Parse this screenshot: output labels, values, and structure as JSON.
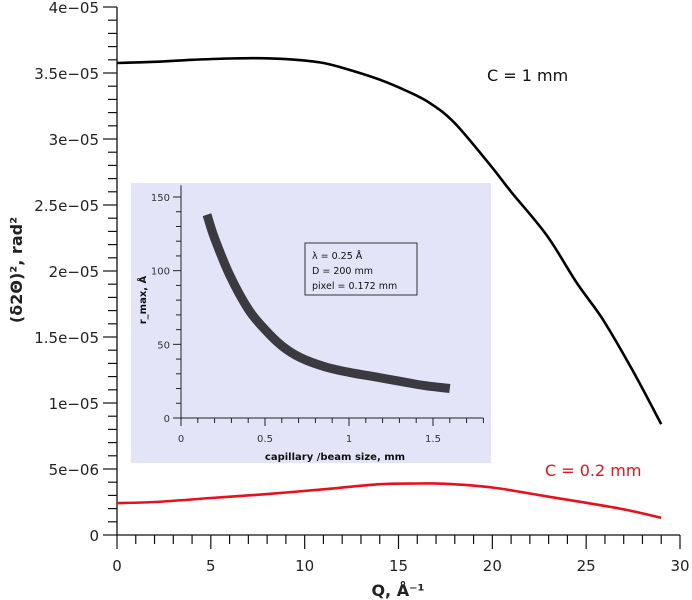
{
  "chart_data": [
    {
      "type": "line",
      "title": "",
      "xlabel": "Q, Å⁻¹",
      "ylabel": "(δ2Θ)², rad²",
      "xlim": [
        0,
        30
      ],
      "ylim": [
        0,
        4e-05
      ],
      "x_ticks": [
        0,
        5,
        10,
        15,
        20,
        25,
        30
      ],
      "x_tick_labels": [
        "0",
        "5",
        "10",
        "15",
        "20",
        "25",
        "30"
      ],
      "x_minor_step": 1,
      "y_ticks": [
        0,
        5e-06,
        1e-05,
        1.5e-05,
        2e-05,
        2.5e-05,
        3e-05,
        3.5e-05,
        4e-05
      ],
      "y_tick_labels": [
        "0",
        "5e−06",
        "1e−05",
        "1.5e−05",
        "2e−05",
        "2.5e−05",
        "3e−05",
        "3.5e−05",
        "4e−05"
      ],
      "y_minor_step": 1e-06,
      "grid": false,
      "legend": "none (inline annotations)",
      "series": [
        {
          "name": "C = 1 mm",
          "color": "#000000",
          "x": [
            0,
            2,
            4,
            6,
            7.5,
            9,
            10.8,
            12,
            14,
            15.5,
            16.7,
            18,
            19.9,
            21,
            22.9,
            24.5,
            25.9,
            27.5,
            29
          ],
          "values": [
            3.576e-05,
            3.585e-05,
            3.6e-05,
            3.61e-05,
            3.612e-05,
            3.605e-05,
            3.58e-05,
            3.54e-05,
            3.45e-05,
            3.36e-05,
            3.27e-05,
            3.12e-05,
            2.8e-05,
            2.6e-05,
            2.27e-05,
            1.91e-05,
            1.63e-05,
            1.24e-05,
            8.4e-06
          ]
        },
        {
          "name": "C = 0.2 mm",
          "color": "#e8101a",
          "x": [
            0,
            2,
            5,
            8,
            11.3,
            14,
            16,
            17.5,
            20,
            23,
            26.8,
            29
          ],
          "values": [
            2.42e-06,
            2.5e-06,
            2.8e-06,
            3.1e-06,
            3.5e-06,
            3.85e-06,
            3.9e-06,
            3.88e-06,
            3.6e-06,
            2.9e-06,
            2e-06,
            1.3e-06
          ]
        }
      ],
      "annotations": [
        {
          "text": "C = 1 mm",
          "color": "#111111",
          "x": 20,
          "y": 3.5e-05
        },
        {
          "text": "C = 0.2 mm",
          "color": "#e8101a",
          "x": 23,
          "y": 4.9e-06
        }
      ]
    },
    {
      "type": "line",
      "title": "inset",
      "xlabel": "capillary /beam size, mm",
      "ylabel": "r_max, Å",
      "xlim": [
        0,
        1.8
      ],
      "ylim": [
        0,
        158
      ],
      "x_ticks": [
        0,
        0.5,
        1,
        1.5
      ],
      "x_tick_labels": [
        "0",
        "0.5",
        "1",
        "1.5"
      ],
      "x_minor_step": 0.1,
      "y_ticks": [
        0,
        50,
        100,
        150
      ],
      "y_tick_labels": [
        "0",
        "50",
        "100",
        "150"
      ],
      "y_minor_step": 10,
      "background": "#e4e4f8",
      "series": [
        {
          "name": "r_max",
          "color": "#3a3a40",
          "x": [
            0.155,
            0.2,
            0.29,
            0.4,
            0.5,
            0.6,
            0.71,
            0.85,
            1.0,
            1.15,
            1.3,
            1.45,
            1.6
          ],
          "values": [
            138,
            122,
            97,
            74,
            60,
            49,
            41,
            35,
            31,
            28,
            25,
            22,
            20
          ]
        }
      ],
      "annotations": [
        {
          "text": "λ = 0.25 Å"
        },
        {
          "text": "D = 200 mm"
        },
        {
          "text": "pixel = 0.172 mm"
        }
      ]
    }
  ]
}
